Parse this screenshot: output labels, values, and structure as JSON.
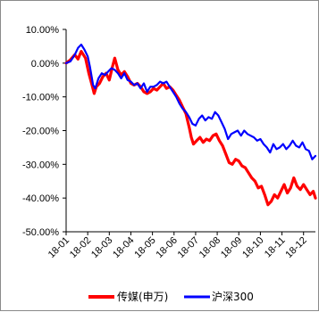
{
  "chart_data": {
    "type": "line",
    "title": "",
    "xlabel": "",
    "ylabel": "",
    "ylim": [
      -50,
      10
    ],
    "y_tick_values": [
      10,
      0,
      -10,
      -20,
      -30,
      -40,
      -50
    ],
    "y_tick_labels": [
      "10.00%",
      "0.00%",
      "-10.00%",
      "-20.00%",
      "-30.00%",
      "-40.00%",
      "-50.00%"
    ],
    "x_tick_labels": [
      "18-01",
      "18-02",
      "18-03",
      "18-04",
      "18-05",
      "18-06",
      "18-07",
      "18-08",
      "18-09",
      "18-10",
      "18-11",
      "18-12"
    ],
    "x_range_months": [
      0,
      11.55
    ],
    "grid": false,
    "legend_position": "bottom",
    "series": [
      {
        "name": "传媒(申万)",
        "color": "#ff0000",
        "points": [
          [
            0.0,
            0.0
          ],
          [
            0.2,
            1.0
          ],
          [
            0.4,
            2.5
          ],
          [
            0.55,
            1.2
          ],
          [
            0.7,
            3.5
          ],
          [
            0.9,
            1.5
          ],
          [
            1.05,
            -3.0
          ],
          [
            1.2,
            -6.5
          ],
          [
            1.3,
            -9.0
          ],
          [
            1.4,
            -7.0
          ],
          [
            1.55,
            -6.0
          ],
          [
            1.7,
            -4.0
          ],
          [
            1.85,
            -3.0
          ],
          [
            2.0,
            -5.0
          ],
          [
            2.15,
            -1.0
          ],
          [
            2.25,
            1.5
          ],
          [
            2.4,
            -2.0
          ],
          [
            2.55,
            -3.5
          ],
          [
            2.7,
            -2.5
          ],
          [
            2.85,
            -4.0
          ],
          [
            3.0,
            -6.0
          ],
          [
            3.15,
            -6.5
          ],
          [
            3.3,
            -6.0
          ],
          [
            3.45,
            -7.0
          ],
          [
            3.6,
            -8.5
          ],
          [
            3.75,
            -9.0
          ],
          [
            3.9,
            -8.5
          ],
          [
            4.05,
            -7.5
          ],
          [
            4.2,
            -8.0
          ],
          [
            4.35,
            -7.0
          ],
          [
            4.5,
            -6.0
          ],
          [
            4.65,
            -7.5
          ],
          [
            4.8,
            -7.0
          ],
          [
            4.95,
            -8.0
          ],
          [
            5.1,
            -9.5
          ],
          [
            5.25,
            -11.0
          ],
          [
            5.4,
            -13.0
          ],
          [
            5.55,
            -15.0
          ],
          [
            5.7,
            -19.0
          ],
          [
            5.8,
            -22.0
          ],
          [
            5.9,
            -24.0
          ],
          [
            6.05,
            -23.0
          ],
          [
            6.2,
            -22.0
          ],
          [
            6.35,
            -23.5
          ],
          [
            6.5,
            -22.5
          ],
          [
            6.65,
            -23.0
          ],
          [
            6.8,
            -21.5
          ],
          [
            6.95,
            -21.0
          ],
          [
            7.1,
            -23.0
          ],
          [
            7.25,
            -24.5
          ],
          [
            7.4,
            -27.0
          ],
          [
            7.55,
            -29.5
          ],
          [
            7.7,
            -30.0
          ],
          [
            7.85,
            -28.5
          ],
          [
            8.0,
            -29.0
          ],
          [
            8.15,
            -30.5
          ],
          [
            8.3,
            -31.0
          ],
          [
            8.45,
            -32.5
          ],
          [
            8.6,
            -34.0
          ],
          [
            8.75,
            -35.0
          ],
          [
            8.9,
            -37.0
          ],
          [
            9.05,
            -36.5
          ],
          [
            9.2,
            -39.0
          ],
          [
            9.35,
            -42.0
          ],
          [
            9.5,
            -41.0
          ],
          [
            9.65,
            -39.0
          ],
          [
            9.8,
            -40.0
          ],
          [
            9.95,
            -38.0
          ],
          [
            10.1,
            -36.0
          ],
          [
            10.25,
            -38.5
          ],
          [
            10.4,
            -37.0
          ],
          [
            10.55,
            -34.0
          ],
          [
            10.7,
            -36.5
          ],
          [
            10.85,
            -37.5
          ],
          [
            11.0,
            -36.0
          ],
          [
            11.15,
            -37.5
          ],
          [
            11.3,
            -39.0
          ],
          [
            11.45,
            -38.0
          ],
          [
            11.55,
            -40.0
          ]
        ]
      },
      {
        "name": "沪深300",
        "color": "#0000ff",
        "points": [
          [
            0.0,
            0.0
          ],
          [
            0.2,
            0.5
          ],
          [
            0.4,
            2.5
          ],
          [
            0.55,
            4.5
          ],
          [
            0.7,
            5.5
          ],
          [
            0.85,
            4.0
          ],
          [
            1.0,
            2.0
          ],
          [
            1.1,
            -1.0
          ],
          [
            1.25,
            -6.5
          ],
          [
            1.35,
            -7.5
          ],
          [
            1.5,
            -4.5
          ],
          [
            1.65,
            -3.0
          ],
          [
            1.8,
            -3.5
          ],
          [
            1.95,
            -2.5
          ],
          [
            2.1,
            -1.5
          ],
          [
            2.25,
            -2.0
          ],
          [
            2.4,
            -3.0
          ],
          [
            2.55,
            -4.5
          ],
          [
            2.7,
            -3.0
          ],
          [
            2.85,
            -5.0
          ],
          [
            3.0,
            -5.5
          ],
          [
            3.15,
            -6.5
          ],
          [
            3.3,
            -6.0
          ],
          [
            3.45,
            -7.5
          ],
          [
            3.6,
            -6.0
          ],
          [
            3.75,
            -8.5
          ],
          [
            3.9,
            -7.0
          ],
          [
            4.05,
            -7.0
          ],
          [
            4.2,
            -6.5
          ],
          [
            4.35,
            -5.5
          ],
          [
            4.5,
            -6.0
          ],
          [
            4.65,
            -5.5
          ],
          [
            4.8,
            -7.0
          ],
          [
            4.95,
            -8.5
          ],
          [
            5.1,
            -10.0
          ],
          [
            5.25,
            -12.0
          ],
          [
            5.4,
            -13.5
          ],
          [
            5.55,
            -14.5
          ],
          [
            5.7,
            -16.0
          ],
          [
            5.85,
            -18.0
          ],
          [
            6.0,
            -18.5
          ],
          [
            6.15,
            -16.5
          ],
          [
            6.3,
            -15.5
          ],
          [
            6.45,
            -17.0
          ],
          [
            6.6,
            -16.0
          ],
          [
            6.75,
            -16.5
          ],
          [
            6.9,
            -14.5
          ],
          [
            7.05,
            -15.5
          ],
          [
            7.2,
            -17.5
          ],
          [
            7.35,
            -19.5
          ],
          [
            7.5,
            -22.5
          ],
          [
            7.65,
            -21.0
          ],
          [
            7.8,
            -20.5
          ],
          [
            7.95,
            -20.0
          ],
          [
            8.1,
            -21.5
          ],
          [
            8.25,
            -20.0
          ],
          [
            8.4,
            -21.0
          ],
          [
            8.55,
            -21.5
          ],
          [
            8.7,
            -22.0
          ],
          [
            8.85,
            -23.0
          ],
          [
            9.0,
            -22.5
          ],
          [
            9.15,
            -24.0
          ],
          [
            9.3,
            -25.0
          ],
          [
            9.45,
            -26.5
          ],
          [
            9.6,
            -24.0
          ],
          [
            9.75,
            -25.5
          ],
          [
            9.9,
            -25.0
          ],
          [
            10.05,
            -24.0
          ],
          [
            10.2,
            -25.5
          ],
          [
            10.35,
            -24.5
          ],
          [
            10.5,
            -23.0
          ],
          [
            10.65,
            -24.5
          ],
          [
            10.8,
            -25.0
          ],
          [
            10.95,
            -23.5
          ],
          [
            11.1,
            -25.5
          ],
          [
            11.25,
            -26.0
          ],
          [
            11.4,
            -28.5
          ],
          [
            11.55,
            -27.5
          ]
        ]
      }
    ]
  }
}
